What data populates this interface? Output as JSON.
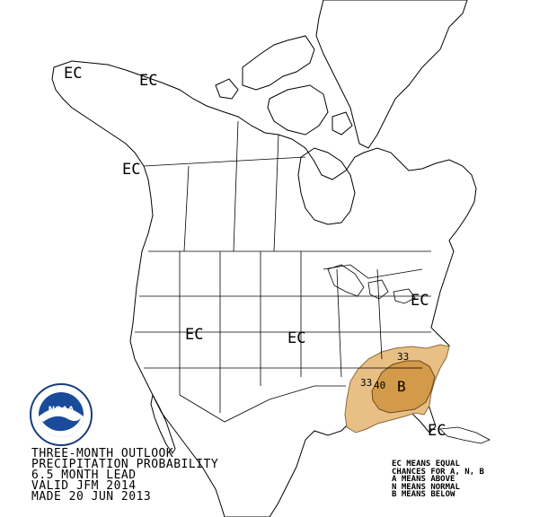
{
  "map_labels": {
    "ec_alaska_west": "EC",
    "ec_alaska_east": "EC",
    "ec_bc": "EC",
    "ec_west": "EC",
    "ec_plains": "EC",
    "ec_northeast": "EC",
    "ec_florida": "EC"
  },
  "contours": {
    "c33_top": "33",
    "c33_left": "33",
    "c40": "40",
    "below": "B"
  },
  "title_lines": [
    "THREE-MONTH OUTLOOK",
    "PRECIPITATION PROBABILITY",
    "6.5 MONTH LEAD",
    "VALID JFM 2014",
    "MADE 20 JUN 2013"
  ],
  "legend_lines": [
    "EC MEANS EQUAL",
    "CHANCES FOR A, N, B",
    "A MEANS ABOVE",
    "N MEANS NORMAL",
    "B MEANS BELOW"
  ],
  "colors": {
    "below_33": "#e8c085",
    "below_40": "#d39a4a",
    "land_outline": "#000000"
  },
  "logo_text": "NOAA"
}
